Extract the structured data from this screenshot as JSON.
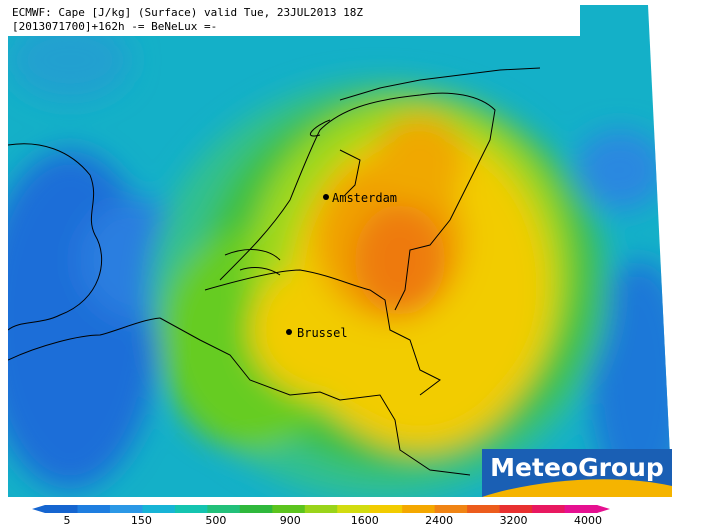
{
  "header": {
    "line1": "ECMWF: Cape [J/kg] (Surface) valid Tue, 23JUL2013 18Z",
    "line2": "[2013071700]+162h -= BeNeLux =-"
  },
  "cities": [
    {
      "label": "Amsterdam"
    },
    {
      "label": "Brussel"
    }
  ],
  "logo": "MeteoGroup",
  "colorbar": {
    "ticks": [
      5,
      150,
      500,
      900,
      1600,
      2400,
      3200,
      4000
    ]
  }
}
